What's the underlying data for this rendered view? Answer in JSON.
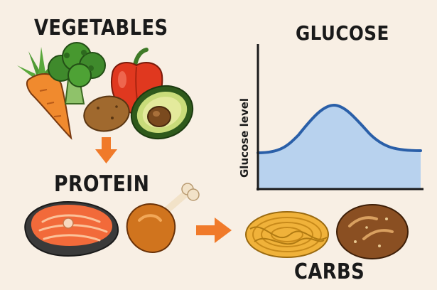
{
  "labels": {
    "vegetables": "VEGETABLES",
    "glucose": "GLUCOSE",
    "protein": "PROTEIN",
    "carbs": "CARBS"
  },
  "chart": {
    "ylabel": "Glucose level"
  },
  "colors": {
    "background": "#f8efe4",
    "curve_line": "#2a5fa8",
    "curve_fill": "#b8d2ee",
    "arrow": "#f07a2a"
  },
  "icons": [
    "carrot-icon",
    "broccoli-icon",
    "bell-pepper-icon",
    "potato-icon",
    "avocado-icon",
    "salmon-steak-icon",
    "chicken-leg-icon",
    "spaghetti-icon",
    "bread-loaf-icon"
  ]
}
